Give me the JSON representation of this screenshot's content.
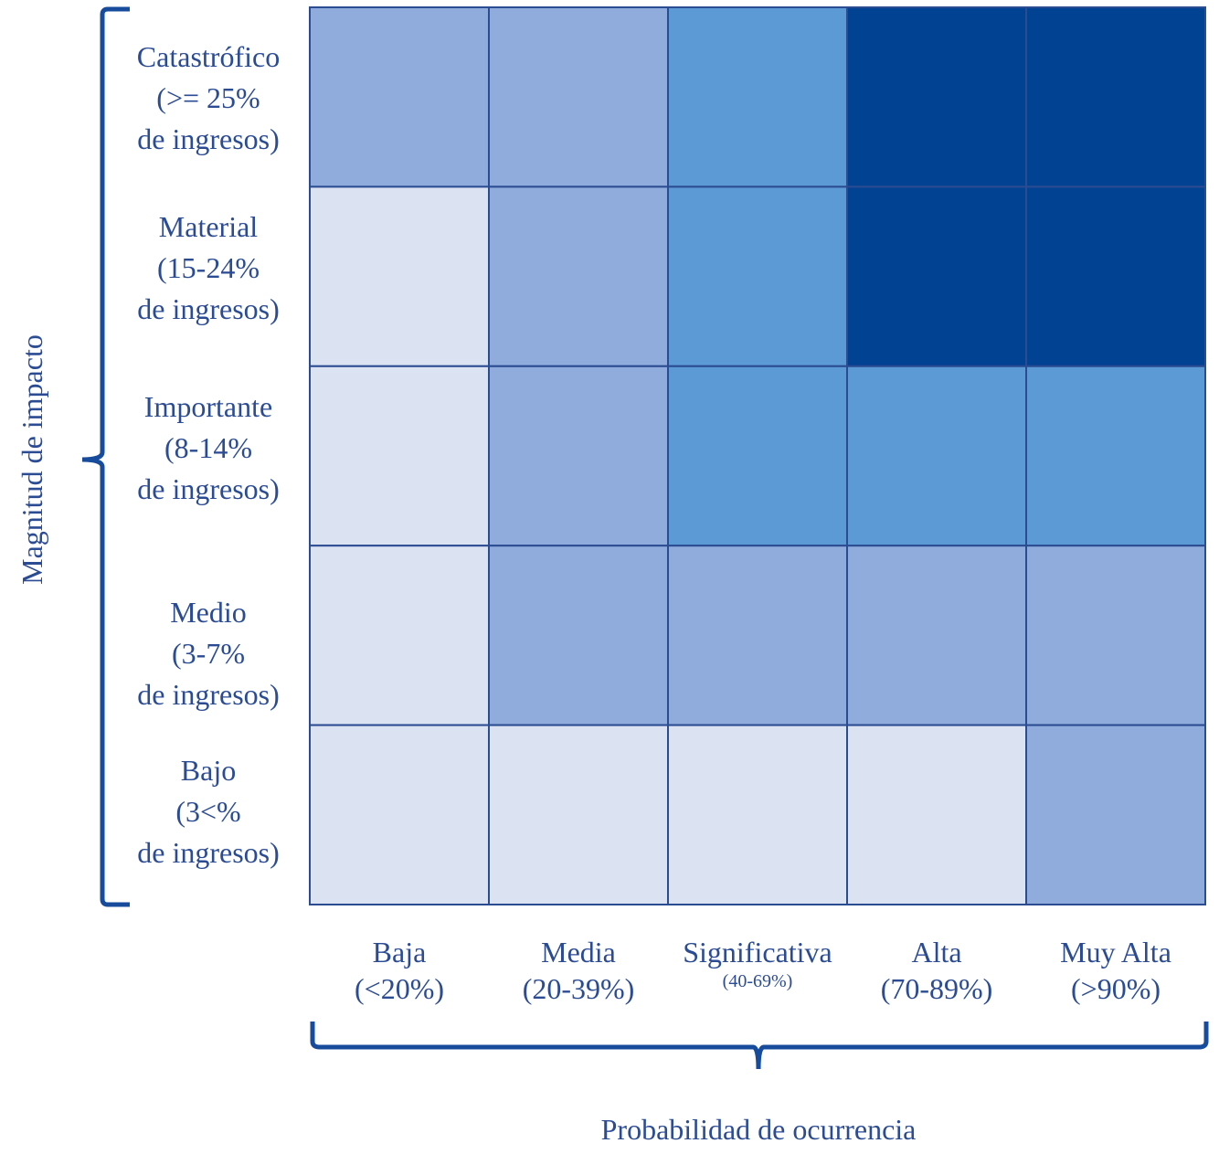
{
  "chart_data": {
    "type": "heatmap",
    "xlabel": "Probabilidad de ocurrencia",
    "ylabel": "Magnitud de impacto",
    "columns": [
      {
        "name": "Baja",
        "range": "(<20%)"
      },
      {
        "name": "Media",
        "range": "(20-39%)"
      },
      {
        "name": "Significativa",
        "range": "(40-69%)"
      },
      {
        "name": "Alta",
        "range": "(70-89%)"
      },
      {
        "name": "Muy Alta",
        "range": "(>90%)"
      }
    ],
    "rows": [
      {
        "name": "Catastrófico",
        "range": "(>= 25%",
        "suffix": "de ingresos)"
      },
      {
        "name": "Material",
        "range": "(15-24%",
        "suffix": "de ingresos)"
      },
      {
        "name": "Importante",
        "range": "(8-14%",
        "suffix": "de ingresos)"
      },
      {
        "name": "Medio",
        "range": "(3-7%",
        "suffix": "de ingresos)"
      },
      {
        "name": "Bajo",
        "range": "(3<%",
        "suffix": "de ingresos)"
      }
    ],
    "levels": [
      [
        2,
        2,
        3,
        4,
        4
      ],
      [
        1,
        2,
        3,
        4,
        4
      ],
      [
        1,
        2,
        3,
        3,
        3
      ],
      [
        1,
        2,
        2,
        2,
        2
      ],
      [
        1,
        1,
        1,
        1,
        2
      ]
    ],
    "level_colors": {
      "1": "#dbe3f3",
      "2": "#8facdc",
      "3": "#5b9ad4",
      "4": "#014293"
    },
    "grid_line_color": "#2c4c92",
    "text_color": "#2b4b93",
    "bracket_color": "#174b9b"
  }
}
